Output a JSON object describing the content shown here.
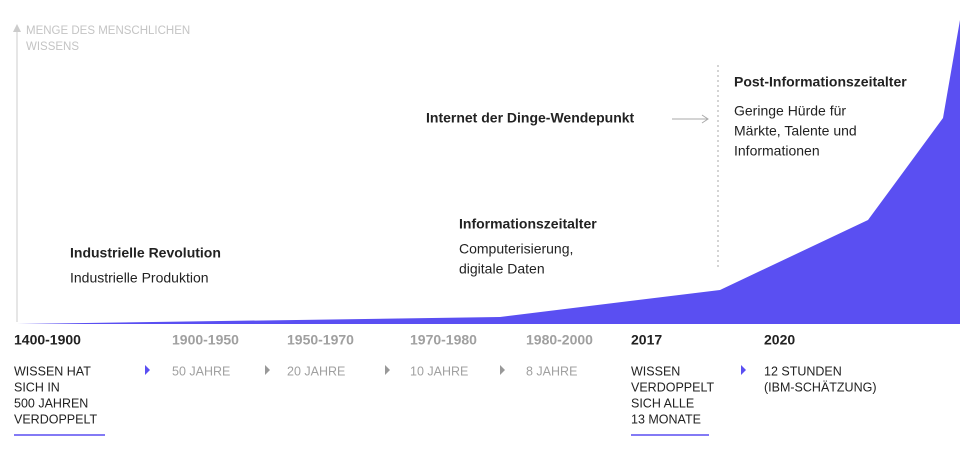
{
  "axis_label": [
    "MENGE DES MENSCHLICHEN",
    "WISSENS"
  ],
  "annotations": [
    {
      "title": "Industrielle Revolution",
      "lines": [
        "Industrielle Produktion"
      ]
    },
    {
      "title": "Informationszeitalter",
      "lines": [
        "Computerisierung,",
        "digitale Daten"
      ]
    },
    {
      "title": "Internet der Dinge-Wendepunkt",
      "lines": []
    },
    {
      "title": "Post-Informationszeitalter",
      "lines": [
        "Geringe Hürde für",
        "Märkte, Talente und",
        "Informationen"
      ]
    }
  ],
  "timeline": [
    {
      "period": "1400-1900",
      "lines": [
        "WISSEN HAT",
        "SICH IN",
        "500 JAHREN",
        "VERDOPPELT"
      ]
    },
    {
      "period": "1900-1950",
      "lines": [
        "50 JAHRE"
      ]
    },
    {
      "period": "1950-1970",
      "lines": [
        "20 JAHRE"
      ]
    },
    {
      "period": "1970-1980",
      "lines": [
        "10 JAHRE"
      ]
    },
    {
      "period": "1980-2000",
      "lines": [
        "8 JAHRE"
      ]
    },
    {
      "period": "2017",
      "lines": [
        "WISSEN",
        "VERDOPPELT",
        "SICH ALLE",
        "13 MONATE"
      ]
    },
    {
      "period": "2020",
      "lines": [
        "12 STUNDEN",
        "(IBM-SCHÄTZUNG)"
      ]
    }
  ]
}
